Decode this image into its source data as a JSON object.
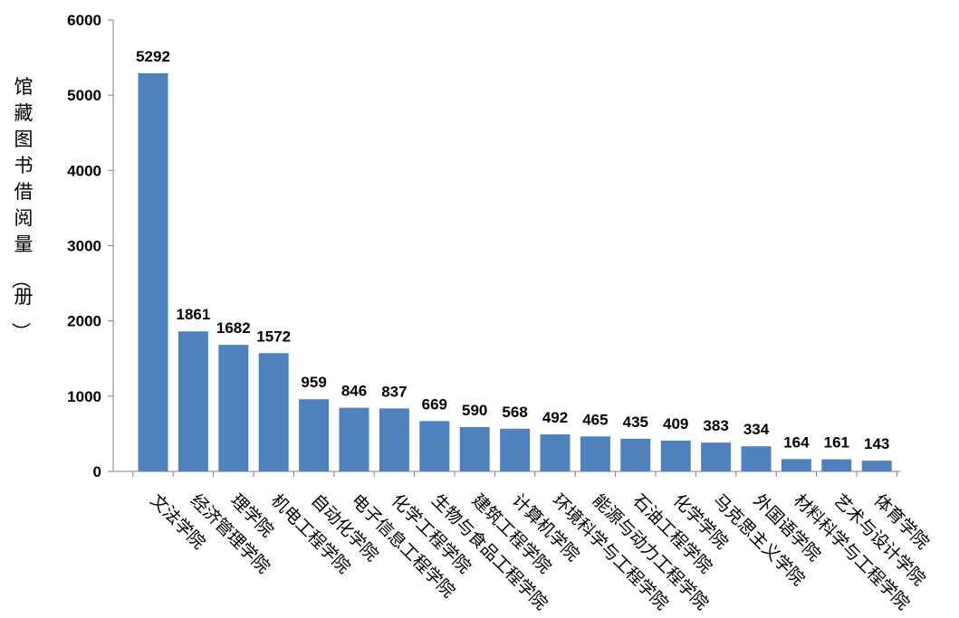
{
  "chart_data": {
    "type": "bar",
    "ylabel": "馆藏图书借阅量（册）",
    "ylim": [
      0,
      6000
    ],
    "yticks": [
      0,
      1000,
      2000,
      3000,
      4000,
      5000,
      6000
    ],
    "grid": false,
    "legend": "none",
    "bar_color": "#4f81bd",
    "categories": [
      "文法学院",
      "经济管理学院",
      "理学院",
      "机电工程学院",
      "自动化学院",
      "电子信息工程学院",
      "化学工程学院",
      "生物与食品工程学院",
      "建筑工程学院",
      "计算机学院",
      "环境科学与工程学院",
      "能源与动力工程学院",
      "石油工程学院",
      "化学学院",
      "马克思主义学院",
      "外国语学院",
      "材料科学与工程学院",
      "艺术与设计学院",
      "体育学院"
    ],
    "values": [
      5292,
      1861,
      1682,
      1572,
      959,
      846,
      837,
      669,
      590,
      568,
      492,
      465,
      435,
      409,
      383,
      334,
      164,
      161,
      143
    ]
  }
}
